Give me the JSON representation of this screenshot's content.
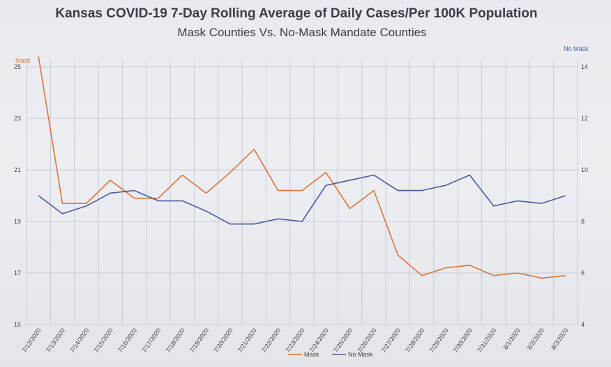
{
  "chart_data": {
    "type": "line",
    "title": "Kansas COVID-19 7-Day Rolling Average of Daily Cases/Per 100K Population",
    "subtitle": "Mask Counties Vs. No-Mask Mandate Counties",
    "categories": [
      "7/12/2020",
      "7/13/2020",
      "7/14/2020",
      "7/15/2020",
      "7/16/2020",
      "7/17/2020",
      "7/18/2020",
      "7/19/2020",
      "7/20/2020",
      "7/21/2020",
      "7/22/2020",
      "7/23/2020",
      "7/24/2020",
      "7/25/2020",
      "7/26/2020",
      "7/27/2020",
      "7/28/2020",
      "7/29/2020",
      "7/30/2020",
      "7/31/2020",
      "8/1/2020",
      "8/2/2020",
      "8/3/2020"
    ],
    "left_axis": {
      "label": "Mask",
      "ylim": [
        15,
        25
      ],
      "ticks": [
        15,
        17,
        19,
        21,
        23,
        25
      ]
    },
    "right_axis": {
      "label": "No Mask",
      "ylim": [
        4,
        14
      ],
      "ticks": [
        4,
        6,
        8,
        10,
        12,
        14
      ]
    },
    "series": [
      {
        "name": "Mask",
        "axis": "left",
        "color": "#d9743a",
        "values": [
          25.4,
          19.7,
          19.7,
          20.6,
          19.9,
          19.9,
          20.8,
          20.1,
          20.9,
          21.8,
          20.2,
          20.2,
          20.9,
          19.5,
          20.2,
          17.7,
          16.9,
          17.2,
          17.3,
          16.9,
          17.0,
          16.8,
          16.9
        ]
      },
      {
        "name": "No Mask",
        "axis": "right",
        "color": "#4a5a9c",
        "values": [
          9.0,
          8.3,
          8.6,
          9.1,
          9.2,
          8.8,
          8.8,
          8.4,
          7.9,
          7.9,
          8.1,
          8.0,
          9.4,
          9.6,
          9.8,
          9.2,
          9.2,
          9.4,
          9.8,
          8.6,
          8.8,
          8.7,
          9.0
        ]
      }
    ],
    "grid": true,
    "legend_position": "bottom"
  }
}
